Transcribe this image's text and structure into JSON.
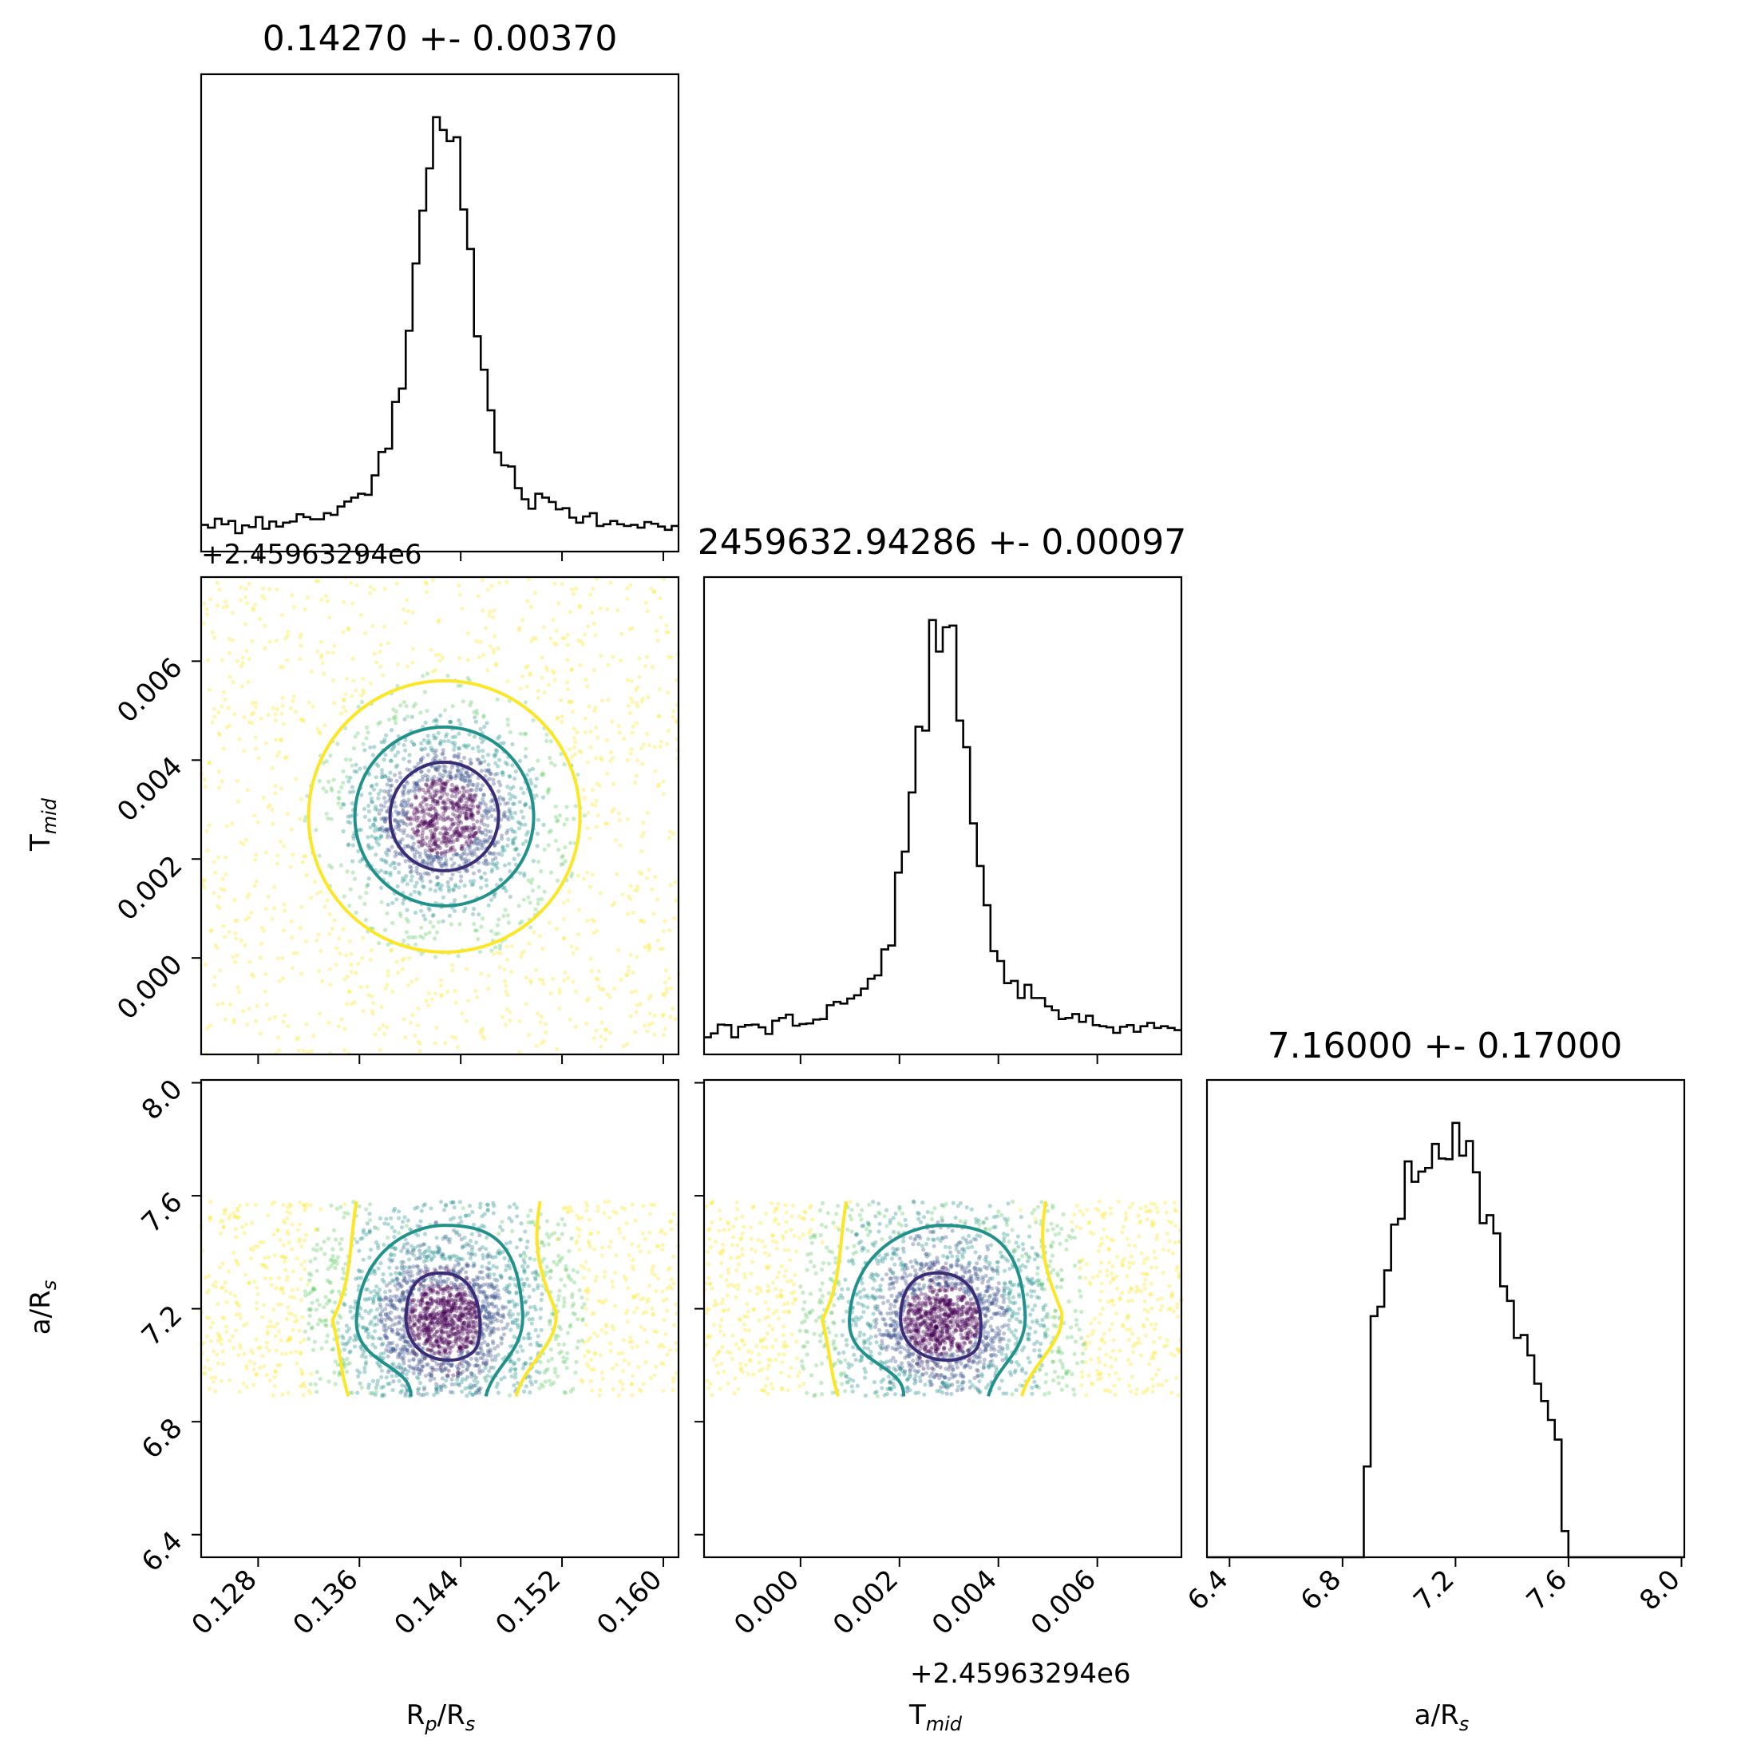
{
  "chart_data": {
    "type": "corner",
    "parameters": [
      {
        "id": "rp",
        "label_main": "R",
        "label_sub1": "p",
        "label_mid": "/R",
        "label_sub2": "s",
        "range": [
          0.1235,
          0.1612
        ],
        "ticks": [
          0.128,
          0.136,
          0.144,
          0.152,
          0.16
        ],
        "tick_labels": [
          "0.128",
          "0.136",
          "0.144",
          "0.152",
          "0.160"
        ],
        "title": "0.14270 +- 0.00370",
        "mean": 0.1427,
        "sd": 0.0037
      },
      {
        "id": "tmid",
        "label_main": "T",
        "label_sub1": "mid",
        "range": [
          -0.00195,
          0.0077
        ],
        "ticks": [
          0.0,
          0.002,
          0.004,
          0.006
        ],
        "tick_labels": [
          "0.000",
          "0.002",
          "0.004",
          "0.006"
        ],
        "offset": "+2.45963294e6",
        "title": "2459632.94286 +- 0.00097",
        "mean": 0.00286,
        "sd": 0.00097
      },
      {
        "id": "ar",
        "label_main": "a/R",
        "label_sub1": "s",
        "range": [
          6.32,
          8.01
        ],
        "ticks": [
          6.4,
          6.8,
          7.2,
          7.6,
          8.0
        ],
        "tick_labels": [
          "6.4",
          "6.8",
          "7.2",
          "7.6",
          "8.0"
        ],
        "title": "7.16000 +- 0.17000",
        "mean": 7.16,
        "sd": 0.17,
        "uniform_support": [
          6.89,
          7.58
        ]
      }
    ],
    "contour_levels": [
      "1-sigma",
      "2-sigma",
      "3-sigma"
    ],
    "contour_colors": [
      "#3b2c78",
      "#21918c",
      "#fde725"
    ],
    "scatter_colormap": [
      "#440154",
      "#3b528b",
      "#21918c",
      "#5ec962",
      "#fde725"
    ],
    "hist_color": "#000000"
  }
}
